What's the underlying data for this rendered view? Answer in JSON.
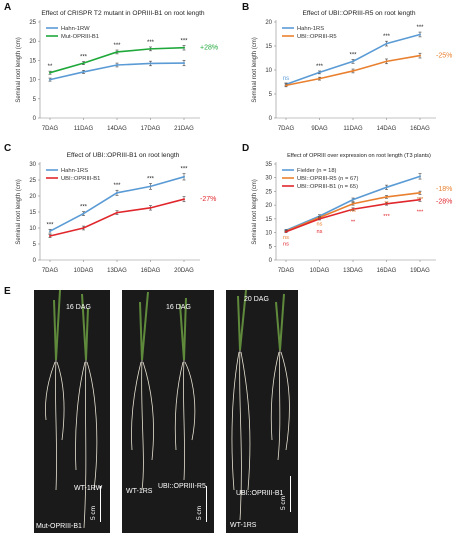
{
  "panels": {
    "A": "A",
    "B": "B",
    "C": "C",
    "D": "D",
    "E": "E"
  },
  "colors": {
    "blue": "#5b9bd5",
    "green": "#1fa83a",
    "orange": "#e9802f",
    "red": "#e0272c",
    "stars": "#222222",
    "ns_orange": "#e9802f",
    "ns_red": "#e0272c"
  },
  "chart_data": [
    {
      "id": "A",
      "type": "line",
      "title": "Effect of CRISPR T2 mutant in OPRIII-B1 on root length",
      "ylabel": "Seminal root length (cm)",
      "xlabel": "",
      "categories": [
        "7DAG",
        "11DAG",
        "14DAG",
        "17DAG",
        "21DAG"
      ],
      "ylim": [
        0,
        25
      ],
      "yticks": [
        0,
        5,
        10,
        15,
        20,
        25
      ],
      "series": [
        {
          "name": "Hahn-1RW",
          "color": "#5b9bd5",
          "values": [
            10,
            12,
            13.8,
            14.2,
            14.3
          ],
          "err": [
            0.4,
            0.4,
            0.5,
            0.6,
            0.7
          ]
        },
        {
          "name": "Mut-OPRIII-B1",
          "color": "#1fa83a",
          "values": [
            11.8,
            14.3,
            17.2,
            18,
            18.3
          ],
          "err": [
            0.4,
            0.4,
            0.5,
            0.5,
            0.6
          ]
        }
      ],
      "annotations": [
        "**",
        "***",
        "***",
        "***",
        "***"
      ],
      "change": {
        "text": "+28%",
        "color": "#1fa83a"
      },
      "grid": false,
      "legend": "top-left"
    },
    {
      "id": "B",
      "type": "line",
      "title": "Effect of UBI::OPRIII-R5 on root length",
      "ylabel": "Seminal root length (cm)",
      "xlabel": "",
      "categories": [
        "7DAG",
        "9DAG",
        "11DAG",
        "14DAG",
        "16DAG"
      ],
      "ylim": [
        0,
        20
      ],
      "yticks": [
        0,
        5,
        10,
        15,
        20
      ],
      "series": [
        {
          "name": "Hahn-1RS",
          "color": "#5b9bd5",
          "values": [
            7,
            9.5,
            11.8,
            15.5,
            17.4
          ],
          "err": [
            0.3,
            0.3,
            0.4,
            0.5,
            0.5
          ]
        },
        {
          "name": "UBI::OPRIII-R5",
          "color": "#e9802f",
          "values": [
            6.8,
            8.2,
            9.8,
            11.8,
            13
          ],
          "err": [
            0.3,
            0.3,
            0.4,
            0.5,
            0.5
          ]
        }
      ],
      "annotations": [
        "ns",
        "***",
        "***",
        "***",
        "***"
      ],
      "change": {
        "text": "-25%",
        "color": "#e9802f"
      },
      "grid": false,
      "legend": "top-left"
    },
    {
      "id": "C",
      "type": "line",
      "title": "Effect of UBI::OPRIII-B1 on root length",
      "ylabel": "Seminal root length (cm)",
      "xlabel": "",
      "categories": [
        "7DAG",
        "10DAG",
        "13DAG",
        "16DAG",
        "20DAG"
      ],
      "ylim": [
        0,
        30
      ],
      "yticks": [
        0,
        5,
        10,
        15,
        20,
        25,
        30
      ],
      "series": [
        {
          "name": "Hahn-1RS",
          "color": "#5b9bd5",
          "values": [
            9,
            14.5,
            21,
            23,
            26
          ],
          "err": [
            0.6,
            0.6,
            0.8,
            0.9,
            1
          ]
        },
        {
          "name": "UBI::OPRIII-B1",
          "color": "#e0272c",
          "values": [
            7.5,
            10,
            14.8,
            16.3,
            19
          ],
          "err": [
            0.5,
            0.6,
            0.6,
            0.7,
            0.8
          ]
        }
      ],
      "annotations": [
        "***",
        "***",
        "***",
        "***",
        "***"
      ],
      "change": {
        "text": "-27%",
        "color": "#e0272c"
      },
      "grid": false,
      "legend": "top-left"
    },
    {
      "id": "D",
      "type": "line",
      "title": "Effect of OPRIII over expression on root length (T3 plants)",
      "ylabel": "Seminal root length (cm)",
      "xlabel": "",
      "categories": [
        "7DAG",
        "10DAG",
        "13DAG",
        "16DAG",
        "19DAG"
      ],
      "ylim": [
        0,
        35
      ],
      "yticks": [
        0,
        5,
        10,
        15,
        20,
        25,
        30,
        35
      ],
      "series": [
        {
          "name": "Fielder (n = 18)",
          "color": "#5b9bd5",
          "values": [
            10.8,
            16,
            22,
            26.5,
            30.5
          ],
          "err": [
            0.4,
            0.5,
            0.6,
            0.8,
            1
          ]
        },
        {
          "name": "UBI::OPRIII-R5 (n = 67)",
          "color": "#e9802f",
          "values": [
            10.5,
            15.5,
            20.5,
            23,
            24.5
          ],
          "err": [
            0.3,
            0.4,
            0.5,
            0.5,
            0.6
          ]
        },
        {
          "name": "UBI::OPRIII-B1 (n = 65)",
          "color": "#e0272c",
          "values": [
            10.3,
            15,
            18.5,
            20.5,
            22
          ],
          "err": [
            0.3,
            0.4,
            0.5,
            0.5,
            0.6
          ]
        }
      ],
      "annotations_orange": [
        "ns",
        "ns",
        "ns",
        "**",
        "***"
      ],
      "annotations_red": [
        "ns",
        "ns",
        "**",
        "***",
        "***"
      ],
      "changes": [
        {
          "text": "-18%",
          "color": "#e9802f"
        },
        {
          "text": "-28%",
          "color": "#e0272c"
        }
      ],
      "grid": false,
      "legend": "top-left"
    }
  ],
  "photos": [
    {
      "date": "16 DAG",
      "labels": [
        "WT-1RW",
        "Mut-OPRIII-B1"
      ],
      "scale": "5 cm"
    },
    {
      "date": "16 DAG",
      "labels": [
        "WT-1RS",
        "UBI::OPRIII-R5"
      ],
      "scale": "5 cm"
    },
    {
      "date": "20 DAG",
      "labels": [
        "UBI::OPRIII-B1",
        "WT-1RS"
      ],
      "scale": "5 cm"
    }
  ]
}
